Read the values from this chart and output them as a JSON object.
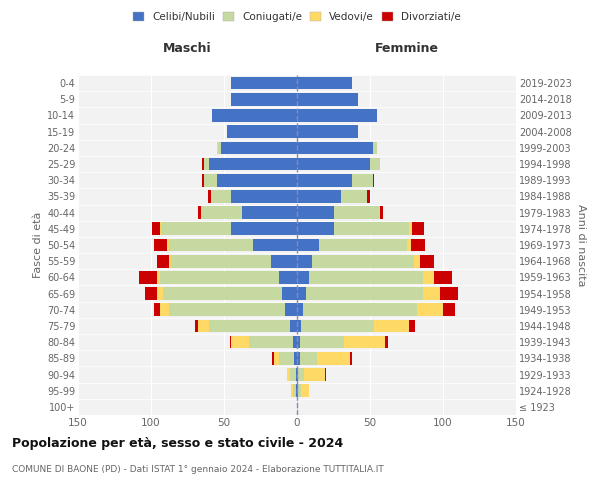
{
  "age_groups": [
    "100+",
    "95-99",
    "90-94",
    "85-89",
    "80-84",
    "75-79",
    "70-74",
    "65-69",
    "60-64",
    "55-59",
    "50-54",
    "45-49",
    "40-44",
    "35-39",
    "30-34",
    "25-29",
    "20-24",
    "15-19",
    "10-14",
    "5-9",
    "0-4"
  ],
  "birth_years": [
    "≤ 1923",
    "1924-1928",
    "1929-1933",
    "1934-1938",
    "1939-1943",
    "1944-1948",
    "1949-1953",
    "1954-1958",
    "1959-1963",
    "1964-1968",
    "1969-1973",
    "1974-1978",
    "1979-1983",
    "1984-1988",
    "1989-1993",
    "1994-1998",
    "1999-2003",
    "2004-2008",
    "2009-2013",
    "2014-2018",
    "2019-2023"
  ],
  "males": {
    "celibi": [
      0,
      1,
      1,
      2,
      3,
      5,
      8,
      10,
      12,
      18,
      30,
      45,
      38,
      45,
      55,
      60,
      52,
      48,
      58,
      45,
      45
    ],
    "coniugati": [
      0,
      2,
      4,
      10,
      30,
      55,
      80,
      82,
      82,
      68,
      58,
      48,
      28,
      14,
      9,
      4,
      2,
      0,
      0,
      0,
      0
    ],
    "vedovi": [
      0,
      1,
      2,
      4,
      12,
      8,
      6,
      4,
      2,
      2,
      1,
      1,
      0,
      0,
      0,
      0,
      1,
      0,
      0,
      0,
      0
    ],
    "divorziati": [
      0,
      0,
      0,
      1,
      1,
      2,
      4,
      8,
      12,
      8,
      9,
      5,
      2,
      2,
      1,
      1,
      0,
      0,
      0,
      0,
      0
    ]
  },
  "females": {
    "nubili": [
      0,
      1,
      1,
      2,
      2,
      3,
      4,
      6,
      8,
      10,
      15,
      25,
      25,
      30,
      38,
      50,
      52,
      42,
      55,
      42,
      38
    ],
    "coniugate": [
      0,
      2,
      4,
      12,
      30,
      50,
      78,
      80,
      78,
      70,
      60,
      52,
      32,
      18,
      14,
      7,
      3,
      0,
      0,
      0,
      0
    ],
    "vedove": [
      1,
      5,
      14,
      22,
      28,
      24,
      18,
      12,
      8,
      4,
      3,
      2,
      0,
      0,
      0,
      0,
      0,
      0,
      0,
      0,
      0
    ],
    "divorziate": [
      0,
      0,
      1,
      2,
      2,
      4,
      8,
      12,
      12,
      10,
      10,
      8,
      2,
      2,
      1,
      0,
      0,
      0,
      0,
      0,
      0
    ]
  },
  "colors": {
    "celibi": "#4472c4",
    "coniugati": "#c5d9a0",
    "vedovi": "#ffd966",
    "divorziati": "#cc0000"
  },
  "xlim": 150,
  "title": "Popolazione per età, sesso e stato civile - 2024",
  "subtitle": "COMUNE DI BAONE (PD) - Dati ISTAT 1° gennaio 2024 - Elaborazione TUTTITALIA.IT",
  "xlabel_left": "Maschi",
  "xlabel_right": "Femmine",
  "ylabel_left": "Fasce di età",
  "ylabel_right": "Anni di nascita",
  "legend_labels": [
    "Celibi/Nubili",
    "Coniugati/e",
    "Vedovi/e",
    "Divorziati/e"
  ],
  "bg_color": "#ffffff",
  "plot_bg_color": "#f2f2f2",
  "grid_color": "#cccccc"
}
